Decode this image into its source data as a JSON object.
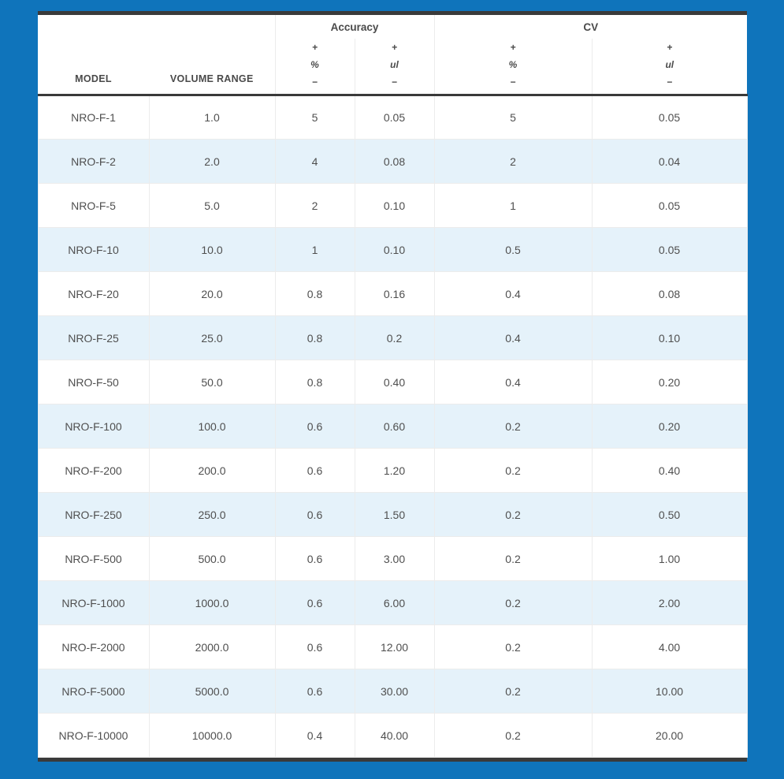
{
  "colors": {
    "page_background": "#0f74bb",
    "table_background": "#ffffff",
    "alt_row": "#e5f2fa",
    "grid_line": "#ececec",
    "dark_border": "#3a3a3a",
    "header_text": "#4a4a4a",
    "body_text": "#4f4f4f"
  },
  "table": {
    "header": {
      "model": "MODEL",
      "volume_range": "VOLUME RANGE",
      "accuracy_group": "Accuracy",
      "cv_group": "CV",
      "plus": "+",
      "minus": "−",
      "percent": "%",
      "microliter": "ul"
    }
  },
  "chart_data": {
    "type": "table",
    "column_groups": [
      "",
      "",
      "Accuracy",
      "Accuracy",
      "CV",
      "CV"
    ],
    "columns": [
      "MODEL",
      "VOLUME RANGE",
      "Accuracy +/− %",
      "Accuracy +/− ul",
      "CV +/− %",
      "CV +/− ul"
    ],
    "rows": [
      [
        "NRO-F-1",
        "1.0",
        "5",
        "0.05",
        "5",
        "0.05"
      ],
      [
        "NRO-F-2",
        "2.0",
        "4",
        "0.08",
        "2",
        "0.04"
      ],
      [
        "NRO-F-5",
        "5.0",
        "2",
        "0.10",
        "1",
        "0.05"
      ],
      [
        "NRO-F-10",
        "10.0",
        "1",
        "0.10",
        "0.5",
        "0.05"
      ],
      [
        "NRO-F-20",
        "20.0",
        "0.8",
        "0.16",
        "0.4",
        "0.08"
      ],
      [
        "NRO-F-25",
        "25.0",
        "0.8",
        "0.2",
        "0.4",
        "0.10"
      ],
      [
        "NRO-F-50",
        "50.0",
        "0.8",
        "0.40",
        "0.4",
        "0.20"
      ],
      [
        "NRO-F-100",
        "100.0",
        "0.6",
        "0.60",
        "0.2",
        "0.20"
      ],
      [
        "NRO-F-200",
        "200.0",
        "0.6",
        "1.20",
        "0.2",
        "0.40"
      ],
      [
        "NRO-F-250",
        "250.0",
        "0.6",
        "1.50",
        "0.2",
        "0.50"
      ],
      [
        "NRO-F-500",
        "500.0",
        "0.6",
        "3.00",
        "0.2",
        "1.00"
      ],
      [
        "NRO-F-1000",
        "1000.0",
        "0.6",
        "6.00",
        "0.2",
        "2.00"
      ],
      [
        "NRO-F-2000",
        "2000.0",
        "0.6",
        "12.00",
        "0.2",
        "4.00"
      ],
      [
        "NRO-F-5000",
        "5000.0",
        "0.6",
        "30.00",
        "0.2",
        "10.00"
      ],
      [
        "NRO-F-10000",
        "10000.0",
        "0.4",
        "40.00",
        "0.2",
        "20.00"
      ]
    ]
  }
}
